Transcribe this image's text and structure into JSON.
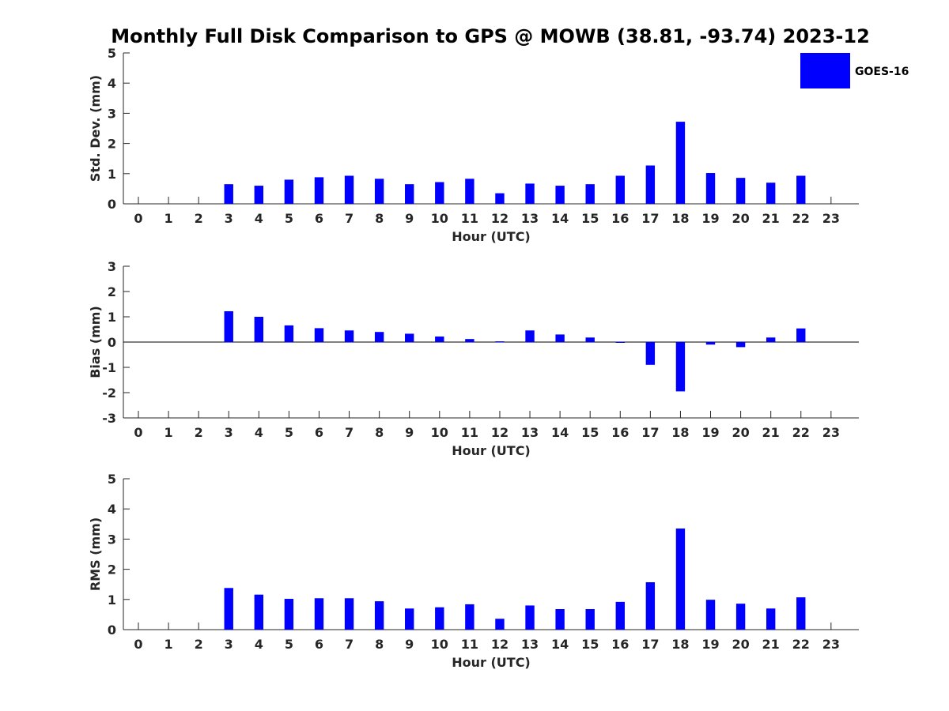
{
  "title": "Monthly Full Disk Comparison to GPS @ MOWB (38.81, -93.74) 2023-12",
  "legend": {
    "label": "GOES-16",
    "color": "#0000FF"
  },
  "chart_data": [
    {
      "type": "bar",
      "name": "std-dev",
      "ylabel": "Std. Dev. (mm)",
      "xlabel": "Hour (UTC)",
      "ylim": [
        0,
        5
      ],
      "yticks": [
        0,
        1,
        2,
        3,
        4,
        5
      ],
      "categories": [
        0,
        1,
        2,
        3,
        4,
        5,
        6,
        7,
        8,
        9,
        10,
        11,
        12,
        13,
        14,
        15,
        16,
        17,
        18,
        19,
        20,
        21,
        22,
        23
      ],
      "series": [
        {
          "name": "GOES-16",
          "values": [
            null,
            null,
            null,
            0.65,
            0.6,
            0.8,
            0.88,
            0.93,
            0.83,
            0.65,
            0.72,
            0.83,
            0.35,
            0.67,
            0.6,
            0.65,
            0.93,
            1.27,
            2.72,
            1.02,
            0.86,
            0.7,
            0.93,
            null
          ]
        }
      ]
    },
    {
      "type": "bar",
      "name": "bias",
      "ylabel": "Bias (mm)",
      "xlabel": "Hour (UTC)",
      "ylim": [
        -3,
        3
      ],
      "yticks": [
        -3,
        -2,
        -1,
        0,
        1,
        2,
        3
      ],
      "categories": [
        0,
        1,
        2,
        3,
        4,
        5,
        6,
        7,
        8,
        9,
        10,
        11,
        12,
        13,
        14,
        15,
        16,
        17,
        18,
        19,
        20,
        21,
        22,
        23
      ],
      "series": [
        {
          "name": "GOES-16",
          "values": [
            null,
            null,
            null,
            1.22,
            1.0,
            0.66,
            0.55,
            0.46,
            0.4,
            0.33,
            0.22,
            0.12,
            0.03,
            0.46,
            0.3,
            0.18,
            0.0,
            -0.9,
            -1.95,
            -0.1,
            -0.2,
            0.18,
            0.54,
            null
          ]
        }
      ]
    },
    {
      "type": "bar",
      "name": "rms",
      "ylabel": "RMS (mm)",
      "xlabel": "Hour (UTC)",
      "ylim": [
        0,
        5
      ],
      "yticks": [
        0,
        1,
        2,
        3,
        4,
        5
      ],
      "categories": [
        0,
        1,
        2,
        3,
        4,
        5,
        6,
        7,
        8,
        9,
        10,
        11,
        12,
        13,
        14,
        15,
        16,
        17,
        18,
        19,
        20,
        21,
        22,
        23
      ],
      "series": [
        {
          "name": "GOES-16",
          "values": [
            null,
            null,
            null,
            1.38,
            1.16,
            1.02,
            1.04,
            1.04,
            0.94,
            0.7,
            0.74,
            0.84,
            0.36,
            0.8,
            0.68,
            0.68,
            0.92,
            1.57,
            3.35,
            0.99,
            0.86,
            0.7,
            1.07,
            null
          ]
        }
      ]
    }
  ]
}
